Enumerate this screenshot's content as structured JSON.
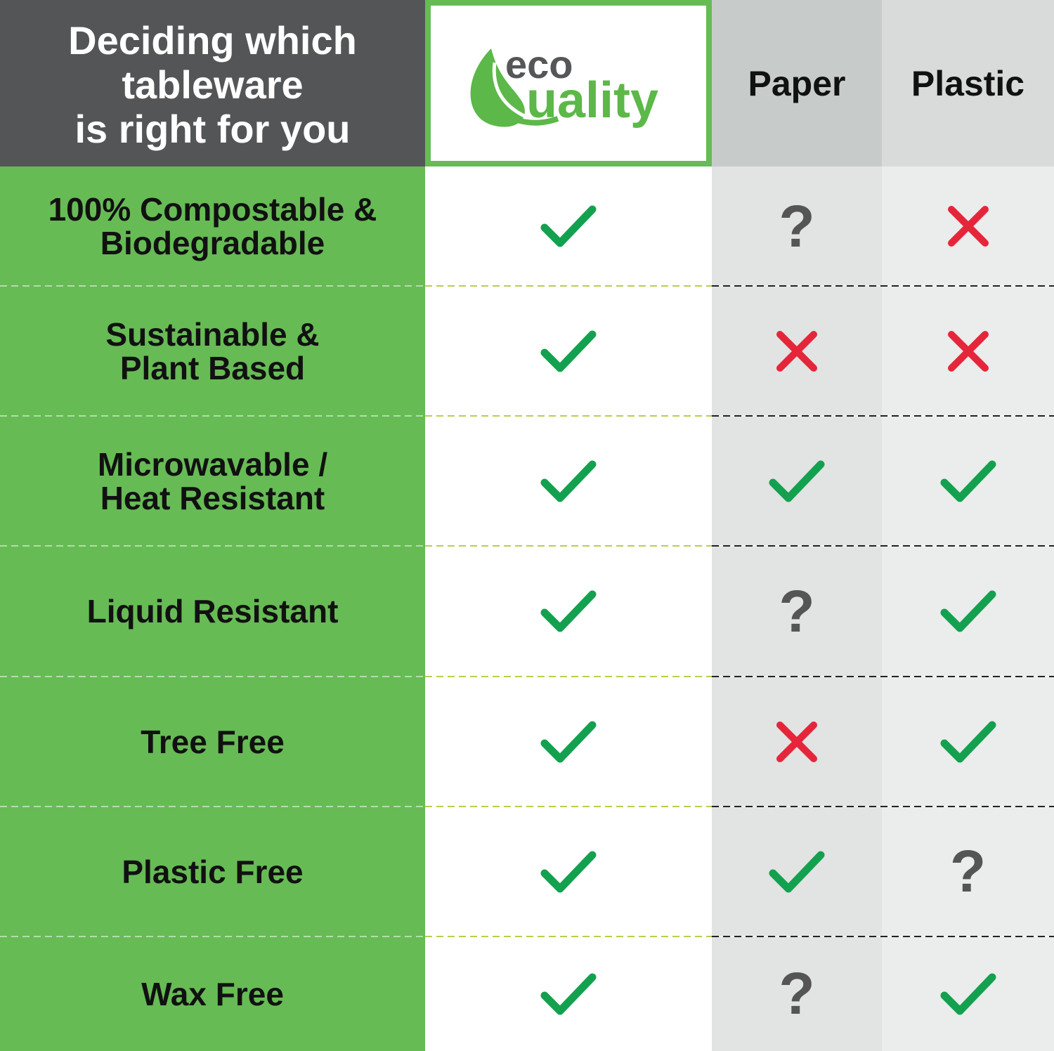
{
  "header": {
    "title": "Deciding which tableware\nis right for you",
    "title_lines": [
      "Deciding which",
      "tableware",
      "is right for you"
    ],
    "brand_logo": {
      "top": "eco",
      "bottom": "uality",
      "full": "ecoQuality"
    },
    "columns": [
      "Paper",
      "Plastic"
    ]
  },
  "colors": {
    "green": "#67bb55",
    "check": "#13a14f",
    "cross": "#e5263a",
    "question": "#555555",
    "header_dark": "#545556"
  },
  "rows": [
    {
      "label": "100% Compostable &\nBiodegradable",
      "values": [
        "check",
        "question",
        "cross"
      ]
    },
    {
      "label": "Sustainable &\nPlant Based",
      "values": [
        "check",
        "cross",
        "cross"
      ]
    },
    {
      "label": "Microwavable /\nHeat Resistant",
      "values": [
        "check",
        "check",
        "check"
      ]
    },
    {
      "label": "Liquid Resistant",
      "values": [
        "check",
        "question",
        "check"
      ]
    },
    {
      "label": "Tree Free",
      "values": [
        "check",
        "cross",
        "check"
      ]
    },
    {
      "label": "Plastic Free",
      "values": [
        "check",
        "check",
        "question"
      ]
    },
    {
      "label": "Wax Free",
      "values": [
        "check",
        "question",
        "check"
      ]
    }
  ],
  "question_mark": "?"
}
